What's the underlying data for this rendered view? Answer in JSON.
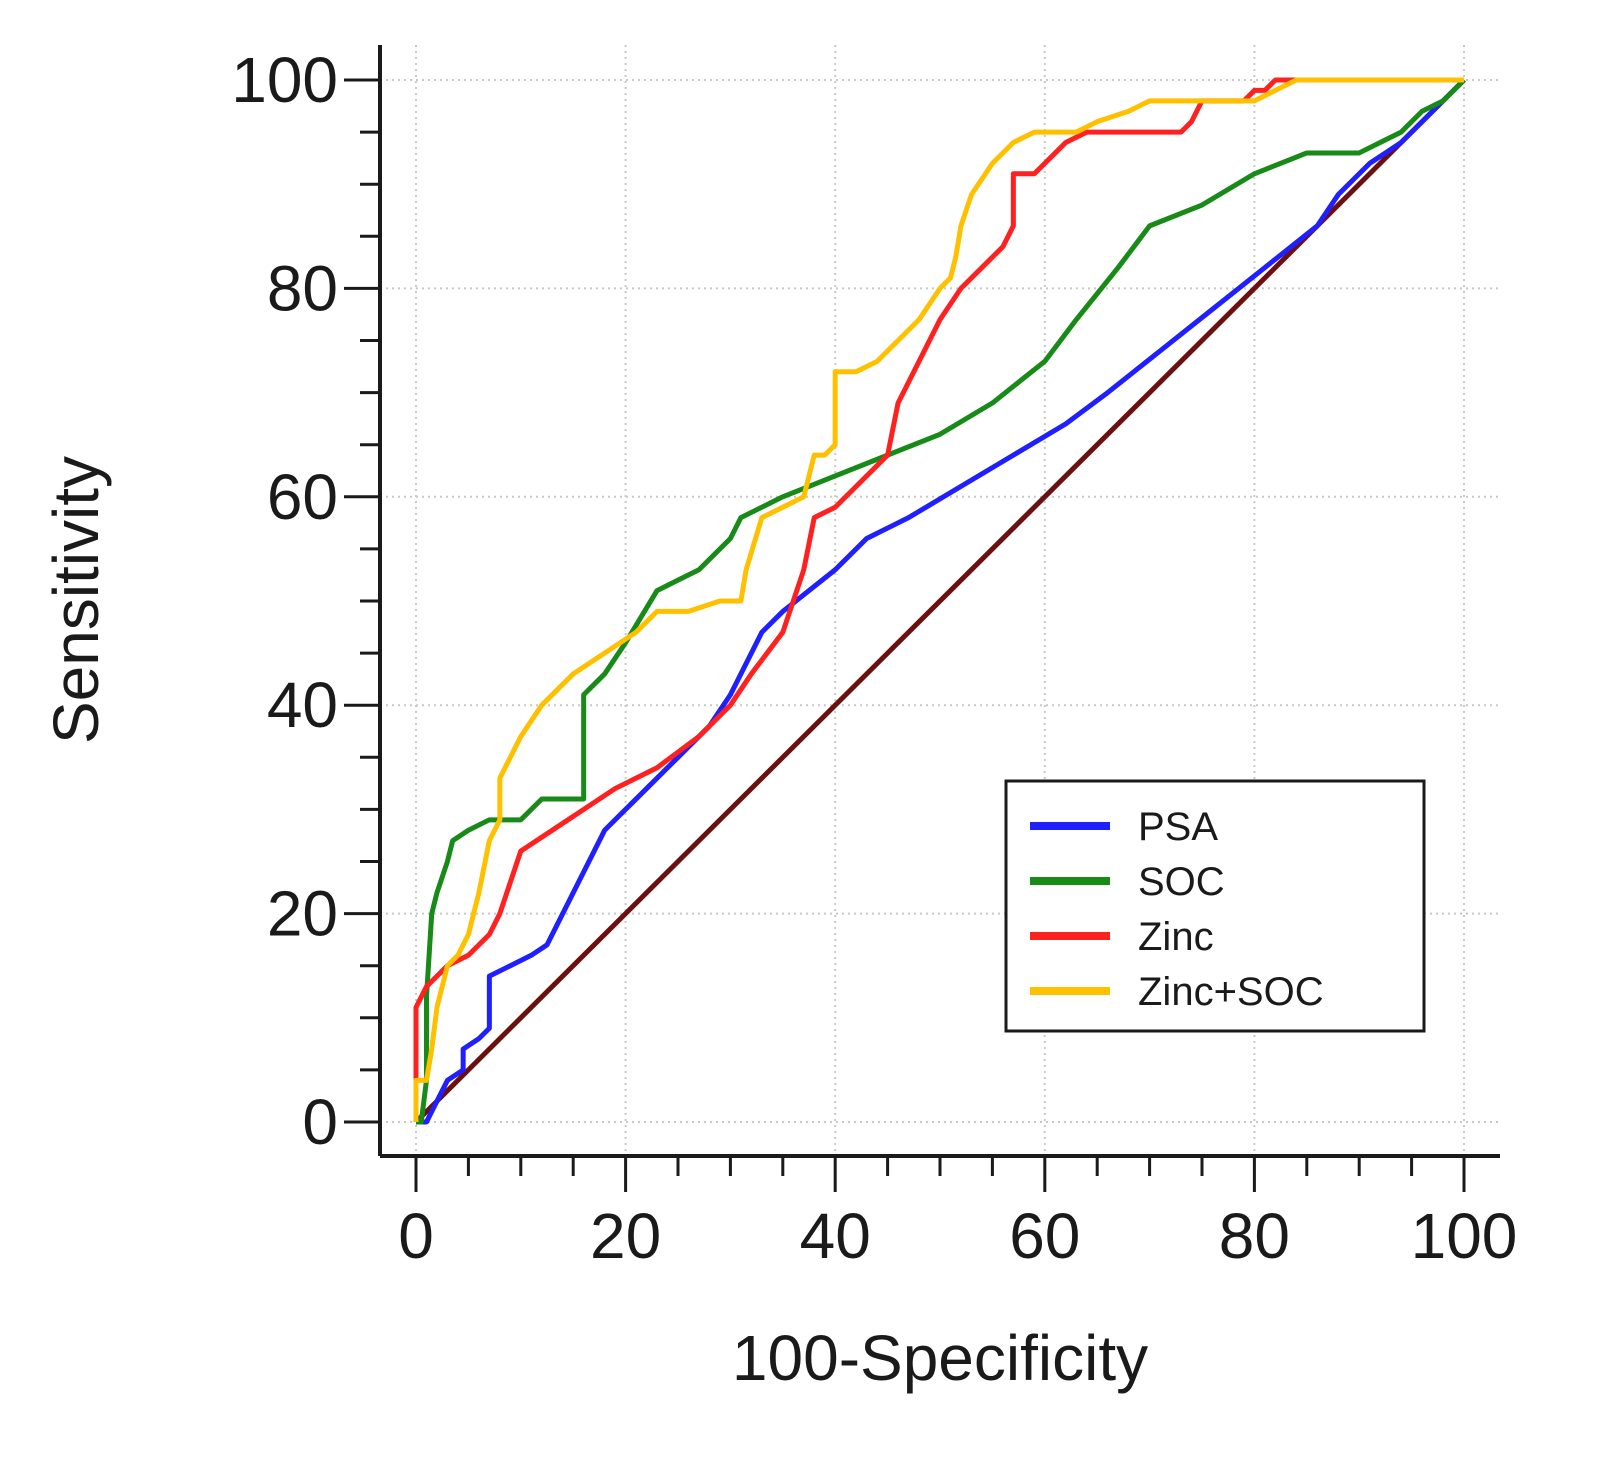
{
  "chart_data": {
    "type": "line",
    "title": "",
    "xlabel": "100-Specificity",
    "ylabel": "Sensitivity",
    "xlim": [
      0,
      100
    ],
    "ylim": [
      0,
      100
    ],
    "grid": true,
    "legend_position": "bottom-right",
    "xticks": [
      "0",
      "20",
      "40",
      "60",
      "80",
      "100"
    ],
    "yticks": [
      "0",
      "20",
      "40",
      "60",
      "80",
      "100"
    ],
    "reference_line": {
      "name": "reference",
      "color": "#6b0f0f",
      "x": [
        0,
        100
      ],
      "y": [
        0,
        100
      ]
    },
    "series": [
      {
        "name": "PSA",
        "color": "#1f1fff",
        "x": [
          0.5,
          1,
          2,
          3,
          4.5,
          4.5,
          6,
          7,
          7,
          9,
          11,
          12.5,
          14,
          17,
          18,
          20,
          22,
          25,
          28,
          30,
          32,
          33,
          35,
          40,
          43,
          47,
          52,
          57,
          62,
          66,
          71,
          76,
          81,
          86,
          88,
          91,
          94,
          96,
          98,
          100
        ],
        "y": [
          0,
          0,
          2,
          4,
          5,
          7,
          8,
          9,
          14,
          15,
          16,
          17,
          20,
          26,
          28,
          30,
          32,
          35,
          38,
          41,
          45,
          47,
          49,
          53,
          56,
          58,
          61,
          64,
          67,
          70,
          74,
          78,
          82,
          86,
          89,
          92,
          94,
          96,
          98,
          100
        ]
      },
      {
        "name": "SOC",
        "color": "#178a17",
        "x": [
          0,
          0.5,
          1,
          1,
          1.5,
          2,
          3,
          3.5,
          5,
          7,
          8,
          10,
          11,
          12,
          15,
          16,
          16,
          18,
          20,
          23,
          25,
          27,
          30,
          31,
          35,
          40,
          45,
          50,
          55,
          60,
          63,
          67,
          70,
          75,
          80,
          85,
          90,
          92,
          94,
          96,
          98,
          100
        ],
        "y": [
          0,
          0,
          4,
          12,
          20,
          22,
          25,
          27,
          28,
          29,
          29,
          29,
          30,
          31,
          31,
          31,
          41,
          43,
          46,
          51,
          52,
          53,
          56,
          58,
          60,
          62,
          64,
          66,
          69,
          73,
          77,
          82,
          86,
          88,
          91,
          93,
          93,
          94,
          95,
          97,
          98,
          100
        ]
      },
      {
        "name": "Zinc",
        "color": "#ff2020",
        "x": [
          0,
          0,
          0,
          0.5,
          1,
          2,
          3,
          5,
          6,
          7,
          8,
          9,
          10,
          13,
          16,
          19,
          23,
          27,
          30,
          32,
          35,
          37,
          38,
          40,
          42,
          44,
          45,
          46,
          48,
          50,
          52,
          54,
          56,
          57,
          57,
          59,
          60,
          61,
          62,
          64,
          67,
          70,
          73,
          74,
          75,
          77,
          79,
          80,
          81,
          82,
          84,
          90,
          95,
          100
        ],
        "y": [
          0,
          5,
          11,
          12,
          13,
          14,
          15,
          16,
          17,
          18,
          20,
          23,
          26,
          28,
          30,
          32,
          34,
          37,
          40,
          43,
          47,
          53,
          58,
          59,
          61,
          63,
          64,
          69,
          73,
          77,
          80,
          82,
          84,
          86,
          91,
          91,
          92,
          93,
          94,
          95,
          95,
          95,
          95,
          96,
          98,
          98,
          98,
          99,
          99,
          100,
          100,
          100,
          100,
          100
        ]
      },
      {
        "name": "Zinc+SOC",
        "color": "#ffc000",
        "x": [
          0,
          0,
          0.5,
          1,
          1.5,
          2,
          3,
          4,
          5,
          6,
          7,
          8,
          8,
          10,
          12,
          15,
          18,
          21,
          23,
          26,
          29,
          31,
          31,
          31.5,
          33,
          35,
          37,
          38,
          39,
          40,
          40,
          42,
          44,
          46,
          48,
          50,
          51,
          51.5,
          52,
          53,
          55,
          57,
          59,
          61,
          63,
          65,
          68,
          70,
          72,
          74,
          76,
          78,
          80,
          82,
          84,
          90,
          100
        ],
        "y": [
          0,
          4,
          4,
          4,
          7,
          11,
          15,
          16,
          18,
          22,
          27,
          29,
          33,
          37,
          40,
          43,
          45,
          47,
          49,
          49,
          50,
          50,
          50,
          53,
          58,
          59,
          60,
          64,
          64,
          65,
          72,
          72,
          73,
          75,
          77,
          80,
          81,
          83,
          86,
          89,
          92,
          94,
          95,
          95,
          95,
          96,
          97,
          98,
          98,
          98,
          98,
          98,
          98,
          99,
          100,
          100,
          100
        ]
      }
    ]
  }
}
